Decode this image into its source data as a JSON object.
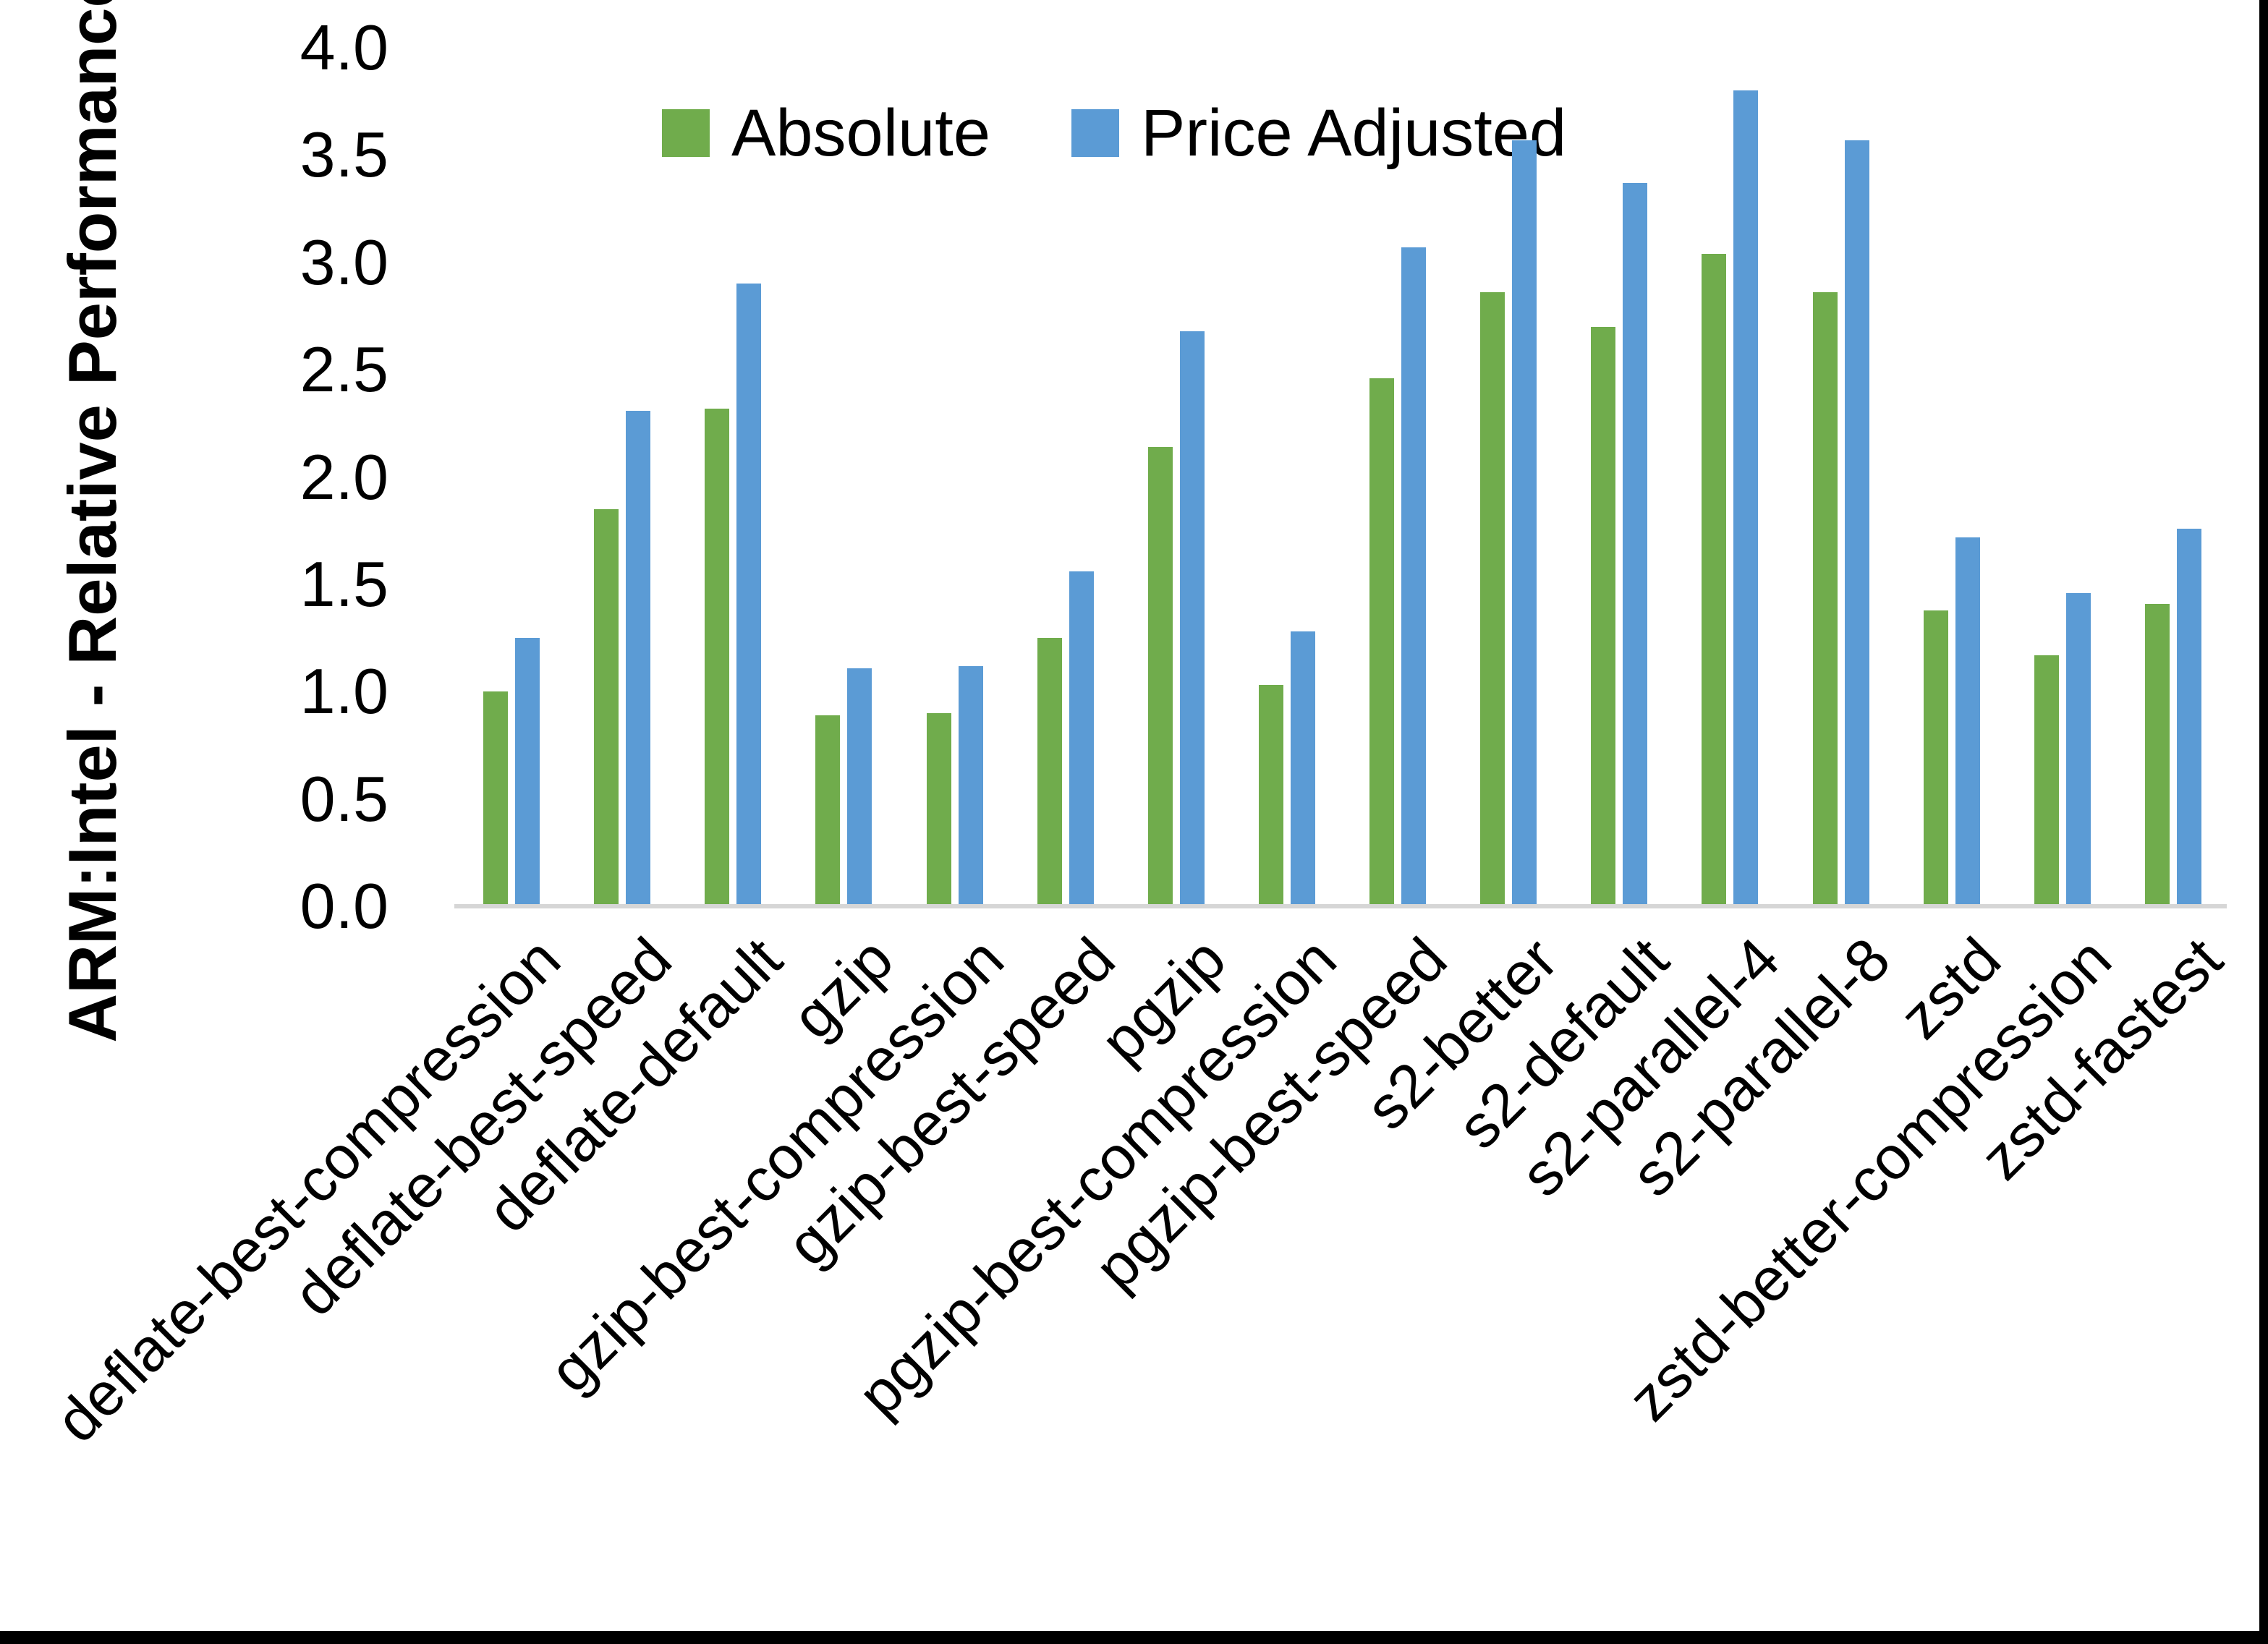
{
  "chart_data": {
    "type": "bar",
    "title": "",
    "xlabel": "",
    "ylabel": "ARM:Intel - Relative Performance",
    "ylim": [
      0.0,
      4.0
    ],
    "ytick_labels": [
      "4.0",
      "3.5",
      "3.0",
      "2.5",
      "2.0",
      "1.5",
      "1.0",
      "0.5",
      "0.0"
    ],
    "ytick_values": [
      4.0,
      3.5,
      3.0,
      2.5,
      2.0,
      1.5,
      1.0,
      0.5,
      0.0
    ],
    "grid": false,
    "legend_position": "top-center",
    "categories": [
      "deflate-best-compression",
      "deflate-best-speed",
      "deflate-default",
      "gzip",
      "gzip-best-compression",
      "gzip-best-speed",
      "pgzip",
      "pgzip-best-compression",
      "pgzip-best-speed",
      "s2-better",
      "s2-default",
      "s2-parallel-4",
      "s2-parallel-8",
      "zstd",
      "zstd-better-compression",
      "zstd-fastest"
    ],
    "series": [
      {
        "name": "Absolute",
        "color": "#70AC4C",
        "values": [
          1.0,
          1.85,
          2.32,
          0.89,
          0.9,
          1.25,
          2.14,
          1.03,
          2.46,
          2.86,
          2.7,
          3.04,
          2.86,
          1.38,
          1.17,
          1.41
        ]
      },
      {
        "name": "Price Adjusted",
        "color": "#5B9BD5",
        "values": [
          1.25,
          2.31,
          2.9,
          1.11,
          1.12,
          1.56,
          2.68,
          1.28,
          3.07,
          3.57,
          3.37,
          3.8,
          3.57,
          1.72,
          1.46,
          1.76
        ]
      }
    ]
  },
  "frame": {
    "axis_line_color": "#D6D6D6",
    "border_color": "#000000",
    "background_color": "#FFFFFF"
  }
}
